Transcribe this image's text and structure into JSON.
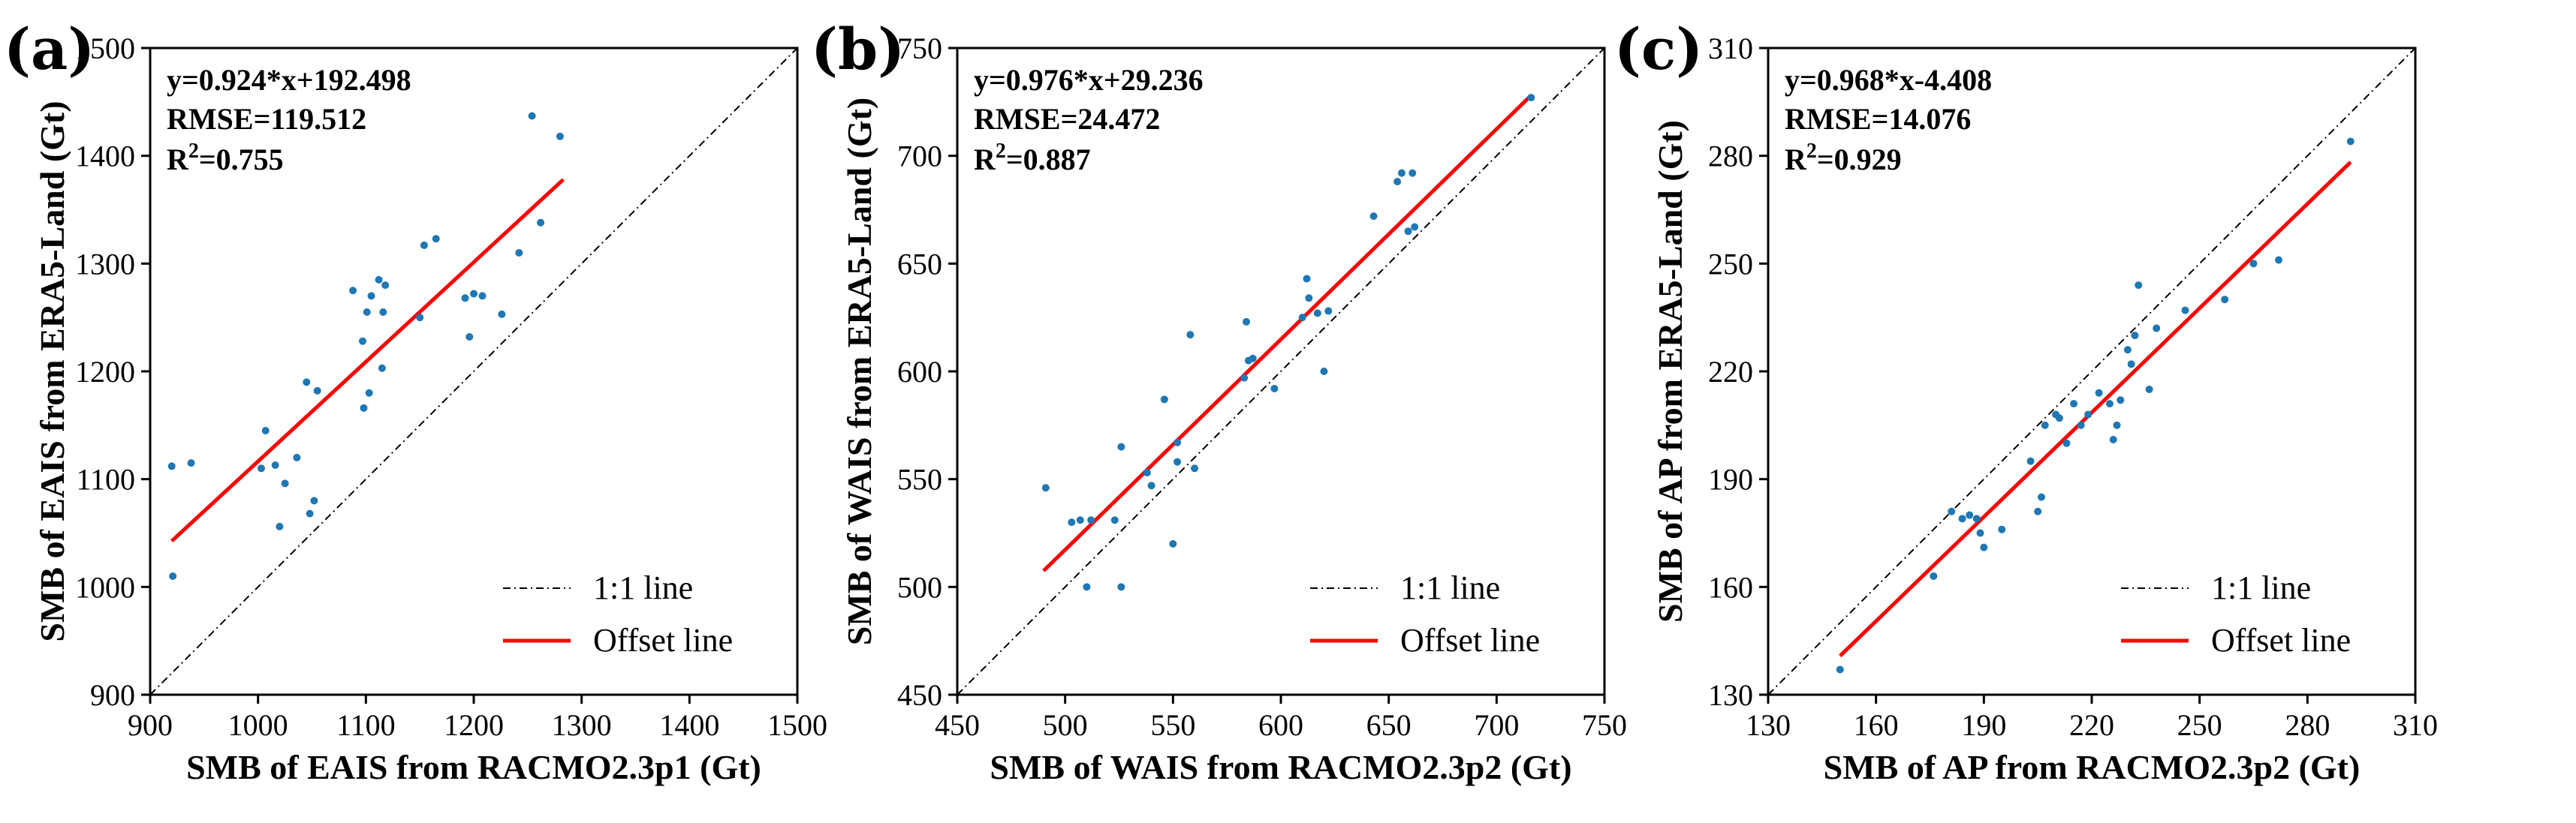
{
  "chart_data": [
    {
      "type": "scatter",
      "panel": "(a)",
      "xlabel": "SMB of EAIS from RACMO2.3p1 (Gt)",
      "ylabel": "SMB of EAIS from ERA5-Land (Gt)",
      "xlim": [
        900,
        1500
      ],
      "ylim": [
        900,
        1500
      ],
      "xticks": [
        900,
        1000,
        1100,
        1200,
        1300,
        1400,
        1500
      ],
      "yticks": [
        900,
        1000,
        1100,
        1200,
        1300,
        1400,
        1500
      ],
      "stats": {
        "equation": "y=0.924*x+192.498",
        "rmse": "RMSE=119.512",
        "r2_prefix": "R",
        "r2_sup": "2",
        "r2_value": "=0.755"
      },
      "fit": {
        "slope": 0.924,
        "intercept": 192.498,
        "x_range": [
          920,
          1283
        ]
      },
      "legend": {
        "one_to_one": "1:1 line",
        "offset": "Offset line",
        "position": "lower-right"
      },
      "colors": {
        "points": "#1f77b4",
        "fit": "#ff0000",
        "identity": "#000000"
      },
      "points": [
        [
          920,
          1112
        ],
        [
          938,
          1115
        ],
        [
          921,
          1010
        ],
        [
          1003,
          1110
        ],
        [
          1007,
          1145
        ],
        [
          1016,
          1113
        ],
        [
          1020,
          1056
        ],
        [
          1025,
          1096
        ],
        [
          1036,
          1120
        ],
        [
          1045,
          1190
        ],
        [
          1048,
          1068
        ],
        [
          1052,
          1080
        ],
        [
          1055,
          1182
        ],
        [
          1088,
          1275
        ],
        [
          1097,
          1228
        ],
        [
          1098,
          1166
        ],
        [
          1101,
          1255
        ],
        [
          1103,
          1180
        ],
        [
          1105,
          1270
        ],
        [
          1112,
          1285
        ],
        [
          1115,
          1203
        ],
        [
          1118,
          1280
        ],
        [
          1116,
          1255
        ],
        [
          1150,
          1250
        ],
        [
          1154,
          1317
        ],
        [
          1165,
          1323
        ],
        [
          1192,
          1268
        ],
        [
          1196,
          1232
        ],
        [
          1200,
          1272
        ],
        [
          1208,
          1270
        ],
        [
          1226,
          1253
        ],
        [
          1242,
          1310
        ],
        [
          1254,
          1437
        ],
        [
          1262,
          1338
        ],
        [
          1280,
          1418
        ]
      ]
    },
    {
      "type": "scatter",
      "panel": "(b)",
      "xlabel": "SMB of WAIS from RACMO2.3p2 (Gt)",
      "ylabel": "SMB of WAIS from ERA5-Land (Gt)",
      "xlim": [
        450,
        750
      ],
      "ylim": [
        450,
        750
      ],
      "xticks": [
        450,
        500,
        550,
        600,
        650,
        700,
        750
      ],
      "yticks": [
        450,
        500,
        550,
        600,
        650,
        700,
        750
      ],
      "stats": {
        "equation": "y=0.976*x+29.236",
        "rmse": "RMSE=24.472",
        "r2_prefix": "R",
        "r2_sup": "2",
        "r2_value": "=0.887"
      },
      "fit": {
        "slope": 0.976,
        "intercept": 29.236,
        "x_range": [
          490,
          716
        ]
      },
      "legend": {
        "one_to_one": "1:1 line",
        "offset": "Offset line",
        "position": "lower-right"
      },
      "colors": {
        "points": "#1f77b4",
        "fit": "#ff0000",
        "identity": "#000000"
      },
      "points": [
        [
          491,
          546
        ],
        [
          503,
          530
        ],
        [
          507,
          531
        ],
        [
          510,
          500
        ],
        [
          512,
          531
        ],
        [
          523,
          531
        ],
        [
          526,
          565
        ],
        [
          526,
          500
        ],
        [
          538,
          553
        ],
        [
          540,
          547
        ],
        [
          546,
          587
        ],
        [
          550,
          520
        ],
        [
          552,
          558
        ],
        [
          552,
          567
        ],
        [
          558,
          617
        ],
        [
          560,
          555
        ],
        [
          583,
          597
        ],
        [
          584,
          623
        ],
        [
          585,
          605
        ],
        [
          587,
          606
        ],
        [
          597,
          592
        ],
        [
          610,
          625
        ],
        [
          612,
          643
        ],
        [
          613,
          634
        ],
        [
          617,
          627
        ],
        [
          620,
          600
        ],
        [
          622,
          628
        ],
        [
          643,
          672
        ],
        [
          654,
          688
        ],
        [
          656,
          692
        ],
        [
          659,
          665
        ],
        [
          661,
          692
        ],
        [
          662,
          667
        ],
        [
          716,
          727
        ]
      ]
    },
    {
      "type": "scatter",
      "panel": "(c)",
      "xlabel": "SMB of AP from RACMO2.3p2 (Gt)",
      "ylabel": "SMB of AP from ERA5-Land (Gt)",
      "xlim": [
        130,
        310
      ],
      "ylim": [
        130,
        310
      ],
      "xticks": [
        130,
        160,
        190,
        220,
        250,
        280,
        310
      ],
      "yticks": [
        130,
        160,
        190,
        220,
        250,
        280,
        310
      ],
      "stats": {
        "equation": "y=0.968*x-4.408",
        "rmse": "RMSE=14.076",
        "r2_prefix": "R",
        "r2_sup": "2",
        "r2_value": "=0.929"
      },
      "fit": {
        "slope": 0.968,
        "intercept": -4.408,
        "x_range": [
          150,
          292
        ]
      },
      "legend": {
        "one_to_one": "1:1 line",
        "offset": "Offset line",
        "position": "lower-right"
      },
      "colors": {
        "points": "#1f77b4",
        "fit": "#ff0000",
        "identity": "#000000"
      },
      "points": [
        [
          150,
          137
        ],
        [
          176,
          163
        ],
        [
          181,
          181
        ],
        [
          184,
          179
        ],
        [
          186,
          180
        ],
        [
          188,
          179
        ],
        [
          189,
          175
        ],
        [
          190,
          171
        ],
        [
          195,
          176
        ],
        [
          203,
          195
        ],
        [
          205,
          181
        ],
        [
          206,
          185
        ],
        [
          207,
          205
        ],
        [
          210,
          208
        ],
        [
          211,
          207
        ],
        [
          213,
          200
        ],
        [
          215,
          211
        ],
        [
          217,
          205
        ],
        [
          219,
          208
        ],
        [
          222,
          214
        ],
        [
          225,
          211
        ],
        [
          226,
          201
        ],
        [
          227,
          205
        ],
        [
          228,
          212
        ],
        [
          230,
          226
        ],
        [
          231,
          222
        ],
        [
          232,
          230
        ],
        [
          233,
          244
        ],
        [
          236,
          215
        ],
        [
          238,
          232
        ],
        [
          246,
          237
        ],
        [
          257,
          240
        ],
        [
          265,
          250
        ],
        [
          272,
          251
        ],
        [
          292,
          284
        ]
      ]
    }
  ]
}
